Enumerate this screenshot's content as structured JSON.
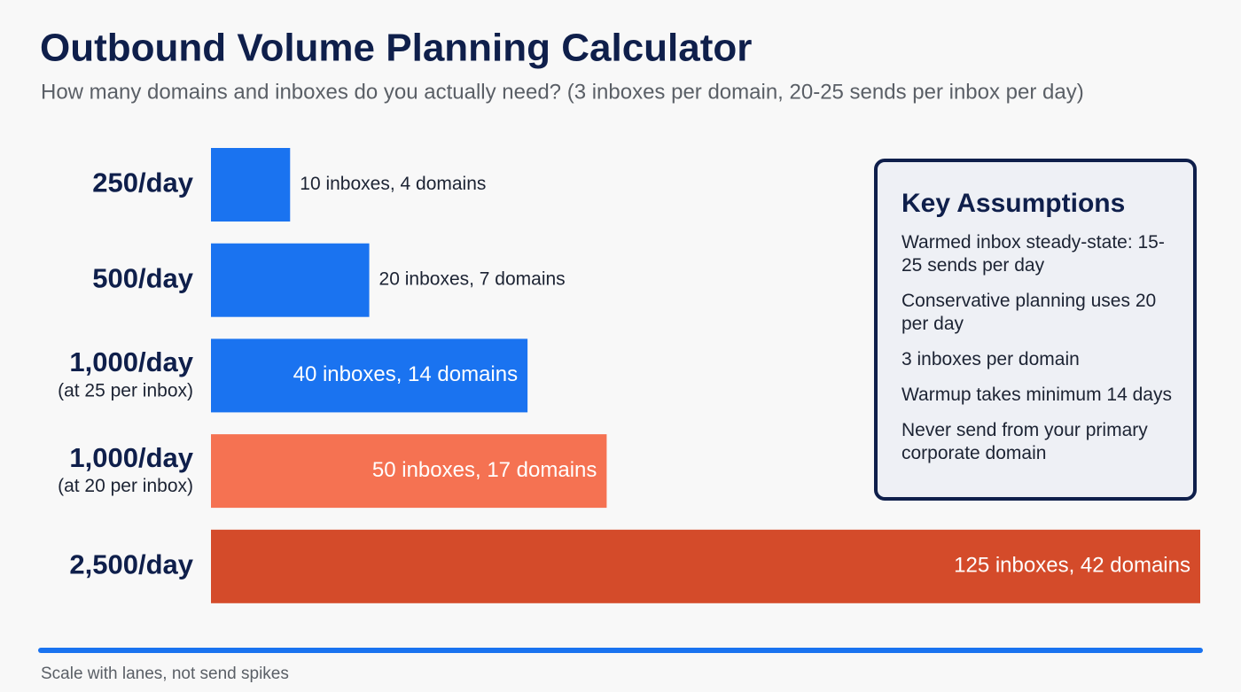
{
  "chart_data": {
    "type": "bar",
    "orientation": "horizontal",
    "title": "Outbound Volume Planning Calculator",
    "subtitle": "How many domains and inboxes do you actually need? (3 inboxes per domain, 20-25 sends per inbox per day)",
    "categories": [
      "250/day",
      "500/day",
      "1,000/day",
      "1,000/day",
      "2,500/day"
    ],
    "category_notes": [
      null,
      null,
      "(at 25 per inbox)",
      "(at 20 per inbox)",
      null
    ],
    "values": [
      10,
      20,
      40,
      50,
      125
    ],
    "value_labels": [
      "10 inboxes, 4 domains",
      "20 inboxes, 7 domains",
      "40 inboxes, 14 domains",
      "50 inboxes, 17 domains",
      "125 inboxes, 42 domains"
    ],
    "colors": [
      "#1a73f0",
      "#1a73f0",
      "#1a73f0",
      "#f57252",
      "#d44b2a"
    ],
    "xlim": [
      0,
      125
    ],
    "footer": "Scale with lanes, not send spikes",
    "assumptions": {
      "title": "Key Assumptions",
      "items": [
        "Warmed inbox steady-state: 15-25 sends per day",
        "Conservative planning uses 20 per day",
        "3 inboxes per domain",
        "Warmup takes minimum 14 days",
        "Never send from your primary corporate domain"
      ]
    }
  }
}
